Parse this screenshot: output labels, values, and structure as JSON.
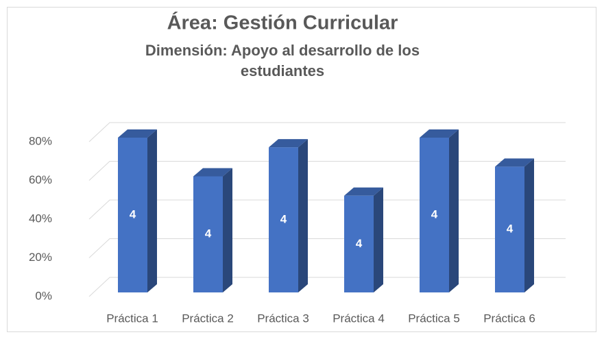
{
  "chart_data": {
    "type": "bar3d",
    "title": "Área: Gestión Curricular",
    "subtitle": [
      "Dimensión: Apoyo al desarrollo de los",
      "estudiantes"
    ],
    "categories": [
      "Práctica 1",
      "Práctica 2",
      "Práctica 3",
      "Práctica 4",
      "Práctica 5",
      "Práctica 6"
    ],
    "values": [
      80,
      60,
      75,
      50,
      80,
      65
    ],
    "bar_labels": [
      4,
      4,
      4,
      4,
      4,
      4
    ],
    "color": "#4472c4",
    "ylim": [
      0,
      80
    ],
    "yticks": [
      {
        "value": 0,
        "label": "0%"
      },
      {
        "value": 20,
        "label": "20%"
      },
      {
        "value": 40,
        "label": "40%"
      },
      {
        "value": 60,
        "label": "60%"
      },
      {
        "value": 80,
        "label": "80%"
      }
    ],
    "grid": true
  }
}
